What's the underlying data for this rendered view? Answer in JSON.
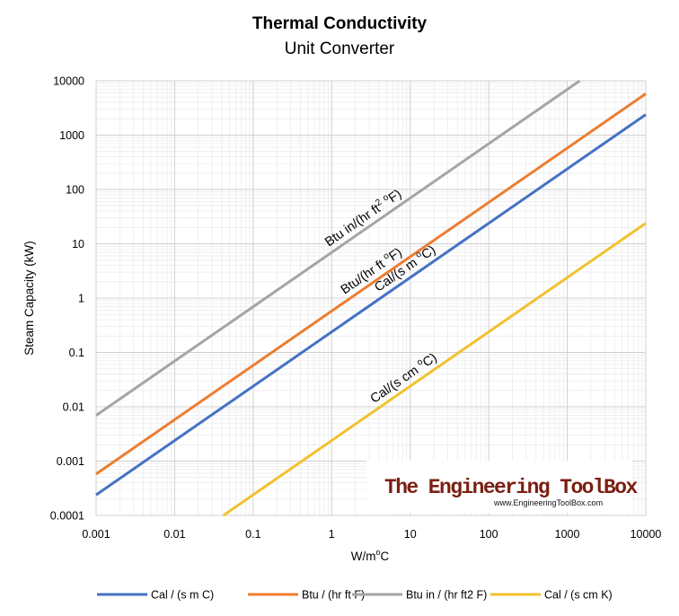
{
  "header": {
    "title": "Thermal Conductivity",
    "subtitle": "Unit Converter"
  },
  "chart_data": {
    "type": "line",
    "title": "Thermal Conductivity",
    "subtitle": "Unit Converter",
    "xlabel": "W/m°C",
    "xlabel_base": "W/m",
    "xlabel_sup": "o",
    "xlabel_tail": "C",
    "ylabel": "Steam Capacity (kW)",
    "x_scale": "log",
    "y_scale": "log",
    "xlim": [
      0.001,
      10000
    ],
    "ylim": [
      0.0001,
      10000
    ],
    "x_ticks": [
      0.001,
      0.01,
      0.1,
      1,
      10,
      100,
      1000,
      10000
    ],
    "x_tick_labels": [
      "0.001",
      "0.01",
      "0.1",
      "1",
      "10",
      "100",
      "1000",
      "10000"
    ],
    "y_ticks": [
      0.0001,
      0.001,
      0.01,
      0.1,
      1,
      10,
      100,
      1000,
      10000
    ],
    "y_tick_labels": [
      "0.0001",
      "0.001",
      "0.01",
      "0.1",
      "1",
      "10",
      "100",
      "1000",
      "10000"
    ],
    "grid": true,
    "legend_position": "bottom",
    "series": [
      {
        "name": "Cal / (s m C)",
        "color": "#4472c4",
        "x": [
          0.001,
          10000
        ],
        "values": [
          0.000239,
          2390
        ]
      },
      {
        "name": "Btu / (hr ft F)",
        "color": "#ed7d31",
        "x": [
          0.001,
          10000
        ],
        "values": [
          0.000578,
          5780
        ]
      },
      {
        "name": "Btu in / (hr ft2 F)",
        "color": "#a5a5a5",
        "x": [
          0.001,
          1440
        ],
        "values": [
          0.00694,
          10000
        ]
      },
      {
        "name": "Cal / (s cm K)",
        "color": "#f2c12e",
        "x": [
          0.0418,
          10000
        ],
        "values": [
          0.0001,
          23.9
        ]
      }
    ],
    "annotations": [
      {
        "series": "Btu in / (hr ft2 F)",
        "parts": [
          "Btu in/(hr ft",
          "2",
          " ",
          "o",
          "F)"
        ],
        "at_x": 3.0
      },
      {
        "series": "Btu / (hr ft F)",
        "parts": [
          "Btu/(hr ft ",
          "o",
          "F)"
        ],
        "at_x": 3.8
      },
      {
        "series": "Cal / (s m C)",
        "parts": [
          "Cal/(s m ",
          "o",
          "C)"
        ],
        "at_x": 10.2
      },
      {
        "series": "Cal / (s cm K)",
        "parts": [
          "Cal/(s cm ",
          "o",
          "C)"
        ],
        "at_x": 9.8
      }
    ]
  },
  "watermark": {
    "title": "The Engineering ToolBox",
    "url": "www.EngineeringToolBox.com"
  }
}
